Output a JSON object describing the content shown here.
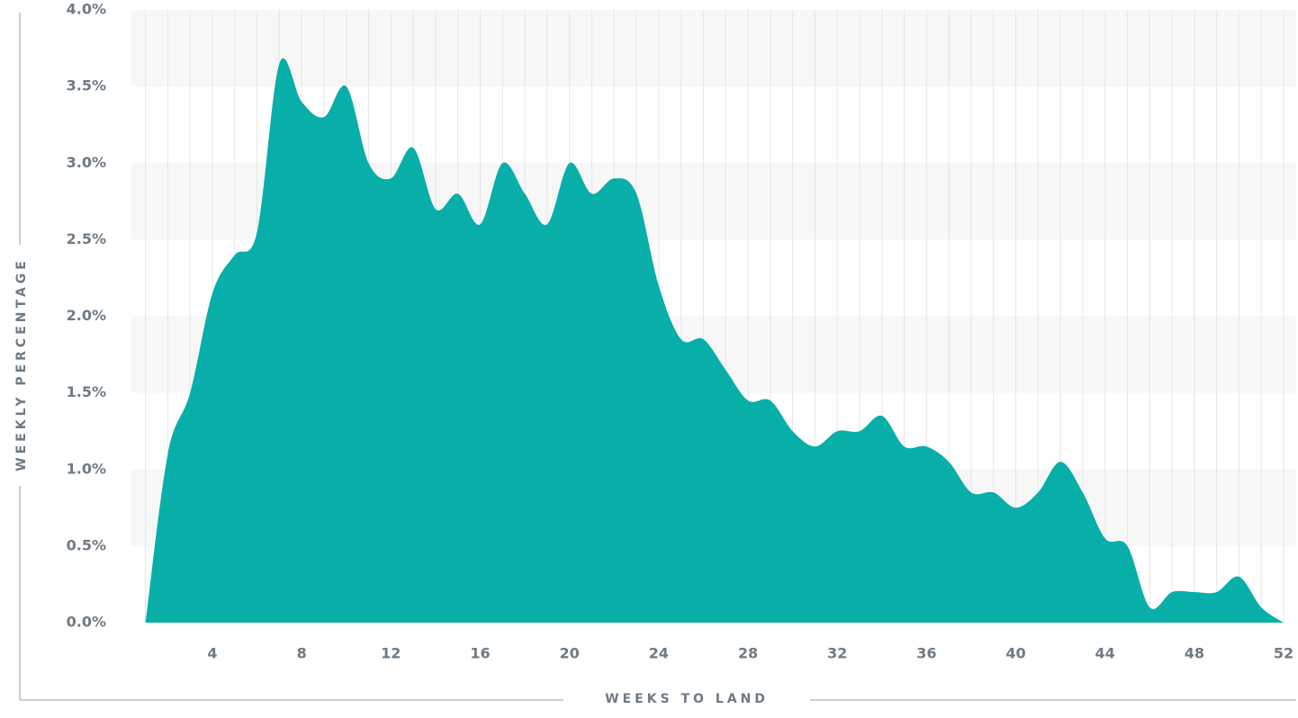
{
  "chart_data": {
    "type": "area",
    "x_label": "WEEKS TO LAND",
    "y_label": "WEEKLY PERCENTAGE",
    "x": [
      1,
      2,
      3,
      4,
      5,
      6,
      7,
      8,
      9,
      10,
      11,
      12,
      13,
      14,
      15,
      16,
      17,
      18,
      19,
      20,
      21,
      22,
      23,
      24,
      25,
      26,
      27,
      28,
      29,
      30,
      31,
      32,
      33,
      34,
      35,
      36,
      37,
      38,
      39,
      40,
      41,
      42,
      43,
      44,
      45,
      46,
      47,
      48,
      49,
      50,
      51,
      52
    ],
    "series": [
      {
        "name": "Weekly percentage",
        "color": "#00aca6",
        "values": [
          0,
          1.1,
          1.5,
          2.15,
          2.4,
          2.55,
          3.65,
          3.4,
          3.3,
          3.5,
          3.0,
          2.9,
          3.1,
          2.7,
          2.8,
          2.6,
          3.0,
          2.8,
          2.6,
          3.0,
          2.8,
          2.9,
          2.8,
          2.2,
          1.85,
          1.85,
          1.65,
          1.45,
          1.45,
          1.25,
          1.15,
          1.25,
          1.25,
          1.35,
          1.15,
          1.15,
          1.05,
          0.85,
          0.85,
          0.75,
          0.85,
          1.05,
          0.85,
          0.55,
          0.5,
          0.1,
          0.2,
          0.2,
          0.2,
          0.3,
          0.1,
          0
        ]
      }
    ],
    "xlim": [
      1,
      52
    ],
    "xticks": [
      4,
      8,
      12,
      16,
      20,
      24,
      28,
      32,
      36,
      40,
      44,
      48,
      52
    ],
    "ylim": [
      0,
      4
    ],
    "yticks": [
      {
        "value": 0,
        "label": "0.0%"
      },
      {
        "value": 0.5,
        "label": "0.5%"
      },
      {
        "value": 1,
        "label": "1.0%"
      },
      {
        "value": 1.5,
        "label": "1.5%"
      },
      {
        "value": 2,
        "label": "2.0%"
      },
      {
        "value": 2.5,
        "label": "2.5%"
      },
      {
        "value": 3,
        "label": "3.0%"
      },
      {
        "value": 3.5,
        "label": "3.5%"
      },
      {
        "value": 4,
        "label": "4.0%"
      }
    ],
    "grid": true
  }
}
